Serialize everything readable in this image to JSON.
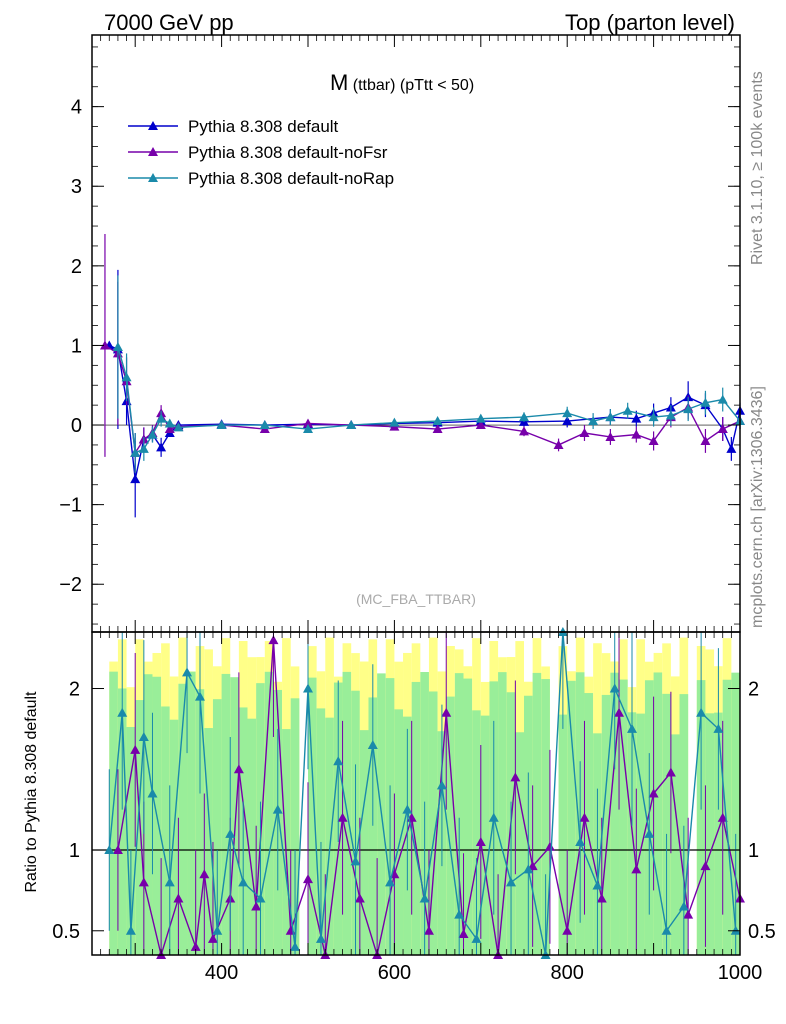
{
  "header": {
    "left": "7000 GeV pp",
    "right": "Top (parton level)"
  },
  "side": {
    "rivet": "Rivet 3.1.10, ≥ 100k events",
    "mcplots": "mcplots.cern.ch [arXiv:1306.3436]"
  },
  "main_title": {
    "main": "M",
    "rest": " (ttbar) (pTtt < 50)"
  },
  "watermark": "(MC_FBA_TTBAR)",
  "ratio_ylabel": "Ratio to Pythia 8.308 default",
  "colors": {
    "default": "#0000cc",
    "noFsr": "#7700aa",
    "noRap": "#1a8aaa",
    "band_yellow": "#ffff88",
    "band_green": "#99ee99"
  },
  "chart_data": [
    {
      "type": "line",
      "panel": "main",
      "xlim": [
        250,
        1000
      ],
      "ylim": [
        -2.6,
        4.9
      ],
      "yticks": [
        -2,
        -1,
        0,
        1,
        2,
        3,
        4
      ],
      "series": [
        {
          "name": "Pythia 8.308 default",
          "x": [
            270,
            280,
            290,
            300,
            310,
            320,
            330,
            340,
            350,
            400,
            450,
            500,
            550,
            600,
            650,
            700,
            750,
            800,
            850,
            880,
            900,
            920,
            940,
            960,
            980,
            990,
            1000
          ],
          "y": [
            1.0,
            0.95,
            0.3,
            -0.68,
            -0.18,
            -0.12,
            -0.28,
            -0.1,
            0.0,
            0.01,
            0.0,
            0.01,
            0.0,
            0.02,
            0.03,
            0.05,
            0.04,
            0.05,
            0.1,
            0.08,
            0.15,
            0.22,
            0.35,
            0.25,
            -0.05,
            -0.3,
            0.18
          ],
          "yerr": [
            0.0,
            1.0,
            0.3,
            0.48,
            0.15,
            0.1,
            0.12,
            0.05,
            0.03,
            0.02,
            0.02,
            0.02,
            0.03,
            0.03,
            0.04,
            0.05,
            0.06,
            0.08,
            0.1,
            0.1,
            0.12,
            0.13,
            0.2,
            0.15,
            0.15,
            0.15,
            0.1
          ]
        },
        {
          "name": "Pythia 8.308 default-noFsr",
          "x": [
            265,
            280,
            290,
            300,
            310,
            320,
            330,
            340,
            350,
            400,
            450,
            500,
            550,
            600,
            650,
            700,
            750,
            790,
            820,
            850,
            880,
            900,
            920,
            940,
            960,
            980,
            1000
          ],
          "y": [
            1.0,
            0.9,
            0.55,
            -0.35,
            -0.18,
            -0.1,
            0.15,
            -0.05,
            -0.02,
            0.0,
            -0.05,
            0.02,
            0.0,
            -0.02,
            -0.05,
            0.0,
            -0.08,
            -0.25,
            -0.1,
            -0.15,
            -0.12,
            -0.2,
            0.1,
            0.22,
            -0.2,
            -0.05,
            0.05
          ],
          "yerr": [
            1.4,
            0.9,
            0.3,
            0.25,
            0.15,
            0.1,
            0.1,
            0.05,
            0.03,
            0.02,
            0.02,
            0.02,
            0.03,
            0.03,
            0.04,
            0.05,
            0.06,
            0.08,
            0.1,
            0.1,
            0.1,
            0.12,
            0.13,
            0.15,
            0.15,
            0.15,
            0.1
          ]
        },
        {
          "name": "Pythia 8.308 default-noRap",
          "x": [
            280,
            290,
            300,
            310,
            320,
            330,
            340,
            350,
            400,
            450,
            500,
            550,
            600,
            650,
            700,
            750,
            800,
            830,
            850,
            870,
            900,
            920,
            940,
            960,
            980,
            1000
          ],
          "y": [
            0.98,
            0.6,
            -0.35,
            -0.3,
            -0.12,
            0.08,
            0.02,
            -0.03,
            0.0,
            0.0,
            -0.05,
            0.0,
            0.03,
            0.05,
            0.08,
            0.1,
            0.15,
            0.05,
            0.1,
            0.18,
            0.1,
            0.12,
            0.2,
            0.28,
            0.32,
            0.05
          ],
          "yerr": [
            0.9,
            0.3,
            0.25,
            0.15,
            0.1,
            0.1,
            0.05,
            0.03,
            0.02,
            0.02,
            0.02,
            0.03,
            0.03,
            0.04,
            0.05,
            0.06,
            0.08,
            0.1,
            0.1,
            0.1,
            0.12,
            0.13,
            0.15,
            0.15,
            0.15,
            0.1
          ]
        }
      ]
    },
    {
      "type": "line",
      "panel": "ratio",
      "xlabel": "",
      "ylabel": "Ratio to Pythia 8.308 default",
      "xlim": [
        250,
        1000
      ],
      "ylim": [
        0.35,
        2.35
      ],
      "yticks": [
        0.5,
        1,
        2
      ],
      "xticks": [
        400,
        600,
        800,
        1000
      ],
      "series": [
        {
          "name": "Pythia 8.308 default-noFsr",
          "x": [
            280,
            300,
            310,
            330,
            350,
            370,
            380,
            390,
            410,
            420,
            440,
            460,
            480,
            500,
            520,
            540,
            560,
            580,
            600,
            620,
            640,
            660,
            680,
            700,
            720,
            740,
            760,
            780,
            800,
            820,
            840,
            860,
            880,
            900,
            920,
            940,
            960,
            980,
            1000
          ],
          "y": [
            1.0,
            1.62,
            0.8,
            0.35,
            0.7,
            0.4,
            0.85,
            0.45,
            0.7,
            1.5,
            0.65,
            2.3,
            0.5,
            0.82,
            0.35,
            1.2,
            0.7,
            0.35,
            0.85,
            1.2,
            0.5,
            1.85,
            0.48,
            1.05,
            0.35,
            1.45,
            0.9,
            1.02,
            0.5,
            1.2,
            0.7,
            1.85,
            0.88,
            1.35,
            1.48,
            0.6,
            0.9,
            1.2,
            0.7
          ],
          "yerr": [
            0.5,
            0.6,
            0.5,
            0.6,
            0.5,
            0.6,
            0.5,
            0.6,
            0.5,
            0.6,
            0.5,
            0.6,
            0.5,
            0.6,
            0.5,
            0.6,
            0.5,
            0.6,
            0.5,
            0.6,
            0.5,
            0.6,
            0.5,
            0.6,
            0.5,
            0.6,
            0.5,
            0.6,
            0.5,
            0.6,
            0.5,
            0.6,
            0.5,
            0.6,
            0.5,
            0.6,
            0.5,
            0.6,
            0.5
          ]
        },
        {
          "name": "Pythia 8.308 default-noRap",
          "x": [
            270,
            285,
            295,
            310,
            320,
            340,
            360,
            375,
            395,
            410,
            425,
            445,
            465,
            485,
            500,
            515,
            535,
            555,
            575,
            595,
            615,
            635,
            655,
            675,
            695,
            715,
            735,
            755,
            775,
            795,
            815,
            835,
            855,
            875,
            895,
            915,
            935,
            955,
            975,
            995
          ],
          "y": [
            1.0,
            1.85,
            0.5,
            1.7,
            1.35,
            0.8,
            2.1,
            1.95,
            0.5,
            1.1,
            0.8,
            0.7,
            1.25,
            0.4,
            2.0,
            0.45,
            1.55,
            0.93,
            1.65,
            0.8,
            1.25,
            0.7,
            1.4,
            0.6,
            0.45,
            1.2,
            0.8,
            0.88,
            0.35,
            2.35,
            1.05,
            0.78,
            2.0,
            1.75,
            1.1,
            0.5,
            0.65,
            1.85,
            1.75,
            0.5
          ],
          "yerr": [
            0.5,
            0.6,
            0.5,
            0.6,
            0.5,
            0.6,
            0.5,
            0.6,
            0.5,
            0.6,
            0.5,
            0.6,
            0.5,
            0.6,
            0.5,
            0.6,
            0.5,
            0.6,
            0.5,
            0.6,
            0.5,
            0.6,
            0.5,
            0.6,
            0.5,
            0.6,
            0.5,
            0.6,
            0.5,
            0.6,
            0.5,
            0.6,
            0.5,
            0.6,
            0.5,
            0.6,
            0.5,
            0.6,
            0.5,
            0.6
          ]
        }
      ]
    }
  ]
}
